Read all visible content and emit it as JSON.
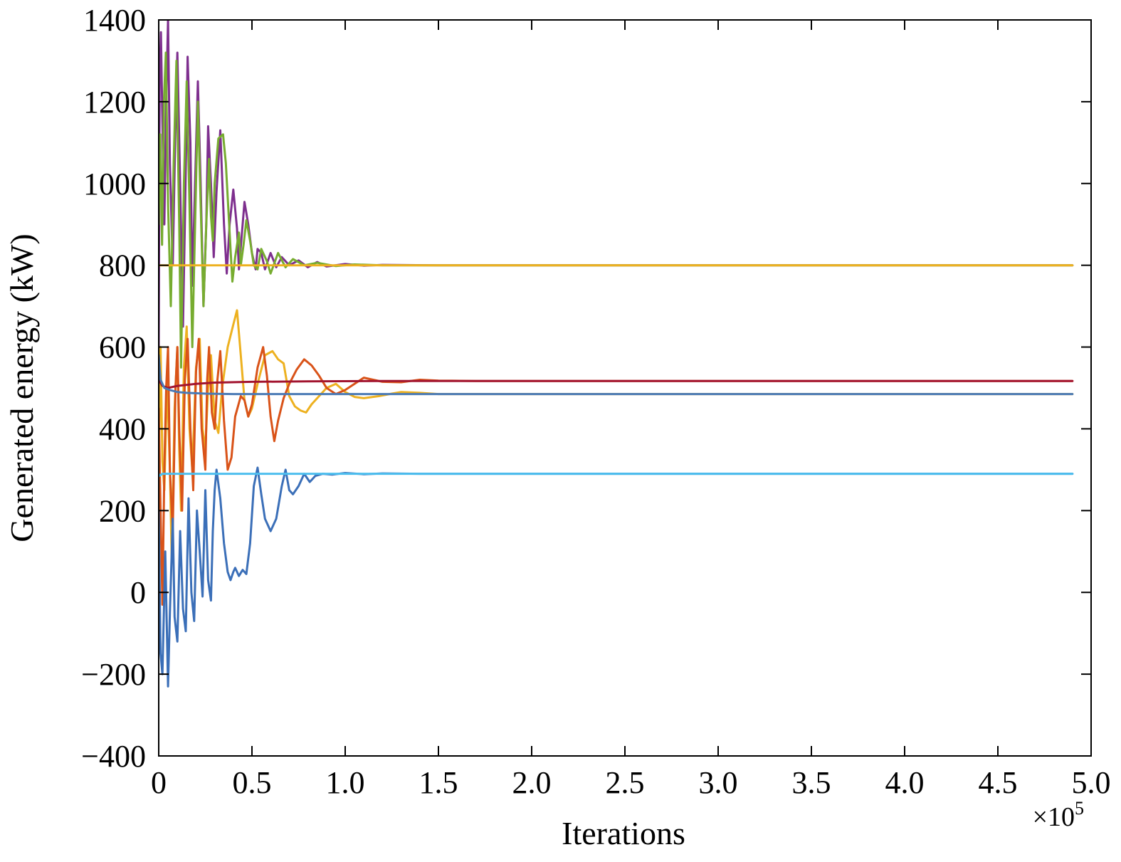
{
  "chart_data": {
    "type": "line",
    "title": "",
    "xlabel": "Iterations",
    "ylabel": "Generated energy (kW)",
    "x_multiplier_label": "×10",
    "x_multiplier_exponent": "5",
    "xlim": [
      0,
      5.0
    ],
    "ylim": [
      -400,
      1400
    ],
    "xticks": [
      0,
      0.5,
      1.0,
      1.5,
      2.0,
      2.5,
      3.0,
      3.5,
      4.0,
      4.5,
      5.0
    ],
    "xtick_labels": [
      "0",
      "0.5",
      "1.0",
      "1.5",
      "2.0",
      "2.5",
      "3.0",
      "3.5",
      "4.0",
      "4.5",
      "5.0"
    ],
    "yticks": [
      -400,
      -200,
      0,
      200,
      400,
      600,
      800,
      1000,
      1200,
      1400
    ],
    "ytick_labels": [
      "−400",
      "−200",
      "0",
      "200",
      "400",
      "600",
      "800",
      "1000",
      "1200",
      "1400"
    ],
    "grid": false,
    "legend": "none",
    "series": [
      {
        "color": "#7e2f8e",
        "points": [
          [
            0,
            600
          ],
          [
            0.005,
            1250
          ],
          [
            0.012,
            1370
          ],
          [
            0.02,
            1150
          ],
          [
            0.03,
            900
          ],
          [
            0.04,
            1200
          ],
          [
            0.05,
            1400
          ],
          [
            0.06,
            1050
          ],
          [
            0.075,
            800
          ],
          [
            0.09,
            1150
          ],
          [
            0.1,
            1320
          ],
          [
            0.115,
            1000
          ],
          [
            0.13,
            650
          ],
          [
            0.14,
            900
          ],
          [
            0.155,
            1310
          ],
          [
            0.17,
            1100
          ],
          [
            0.18,
            750
          ],
          [
            0.195,
            1000
          ],
          [
            0.21,
            1250
          ],
          [
            0.225,
            1000
          ],
          [
            0.24,
            700
          ],
          [
            0.255,
            900
          ],
          [
            0.265,
            1140
          ],
          [
            0.28,
            1000
          ],
          [
            0.295,
            820
          ],
          [
            0.31,
            980
          ],
          [
            0.33,
            1130
          ],
          [
            0.35,
            900
          ],
          [
            0.365,
            780
          ],
          [
            0.38,
            900
          ],
          [
            0.4,
            985
          ],
          [
            0.42,
            890
          ],
          [
            0.43,
            790
          ],
          [
            0.45,
            900
          ],
          [
            0.46,
            955
          ],
          [
            0.48,
            900
          ],
          [
            0.5,
            830
          ],
          [
            0.52,
            790
          ],
          [
            0.53,
            840
          ],
          [
            0.55,
            830
          ],
          [
            0.57,
            790
          ],
          [
            0.6,
            830
          ],
          [
            0.63,
            795
          ],
          [
            0.66,
            820
          ],
          [
            0.7,
            800
          ],
          [
            0.75,
            812
          ],
          [
            0.8,
            795
          ],
          [
            0.85,
            808
          ],
          [
            0.9,
            797
          ],
          [
            1.0,
            803
          ],
          [
            1.1,
            799
          ],
          [
            1.2,
            801
          ],
          [
            1.5,
            800
          ],
          [
            4.9,
            800
          ]
        ]
      },
      {
        "color": "#77ac30",
        "points": [
          [
            0,
            900
          ],
          [
            0.008,
            1120
          ],
          [
            0.018,
            850
          ],
          [
            0.028,
            1200
          ],
          [
            0.038,
            1320
          ],
          [
            0.05,
            950
          ],
          [
            0.065,
            700
          ],
          [
            0.08,
            1050
          ],
          [
            0.095,
            1300
          ],
          [
            0.11,
            900
          ],
          [
            0.12,
            550
          ],
          [
            0.135,
            1000
          ],
          [
            0.15,
            1250
          ],
          [
            0.165,
            950
          ],
          [
            0.18,
            600
          ],
          [
            0.195,
            900
          ],
          [
            0.21,
            1200
          ],
          [
            0.225,
            950
          ],
          [
            0.24,
            700
          ],
          [
            0.255,
            900
          ],
          [
            0.27,
            1060
          ],
          [
            0.28,
            920
          ],
          [
            0.29,
            860
          ],
          [
            0.3,
            1000
          ],
          [
            0.32,
            1110
          ],
          [
            0.345,
            1120
          ],
          [
            0.36,
            1050
          ],
          [
            0.38,
            880
          ],
          [
            0.395,
            760
          ],
          [
            0.41,
            820
          ],
          [
            0.43,
            880
          ],
          [
            0.44,
            800
          ],
          [
            0.455,
            850
          ],
          [
            0.47,
            910
          ],
          [
            0.49,
            860
          ],
          [
            0.51,
            800
          ],
          [
            0.53,
            790
          ],
          [
            0.55,
            840
          ],
          [
            0.58,
            810
          ],
          [
            0.6,
            780
          ],
          [
            0.64,
            830
          ],
          [
            0.68,
            795
          ],
          [
            0.72,
            815
          ],
          [
            0.78,
            800
          ],
          [
            0.85,
            806
          ],
          [
            0.95,
            798
          ],
          [
            1.05,
            802
          ],
          [
            1.2,
            800
          ],
          [
            4.9,
            800
          ]
        ]
      },
      {
        "color": "#edb120",
        "points": [
          [
            0,
            800
          ],
          [
            0.004,
            800
          ],
          [
            0.012,
            800
          ],
          [
            0.5,
            800
          ],
          [
            1.0,
            800
          ],
          [
            4.9,
            800
          ]
        ]
      },
      {
        "color": "#edb120",
        "points": [
          [
            0,
            300
          ],
          [
            0.01,
            600
          ],
          [
            0.02,
            320
          ],
          [
            0.03,
            250
          ],
          [
            0.045,
            520
          ],
          [
            0.06,
            300
          ],
          [
            0.07,
            80
          ],
          [
            0.085,
            450
          ],
          [
            0.1,
            600
          ],
          [
            0.11,
            350
          ],
          [
            0.12,
            200
          ],
          [
            0.135,
            550
          ],
          [
            0.15,
            650
          ],
          [
            0.165,
            400
          ],
          [
            0.18,
            300
          ],
          [
            0.2,
            550
          ],
          [
            0.22,
            620
          ],
          [
            0.235,
            400
          ],
          [
            0.25,
            350
          ],
          [
            0.265,
            500
          ],
          [
            0.28,
            580
          ],
          [
            0.3,
            420
          ],
          [
            0.32,
            390
          ],
          [
            0.34,
            500
          ],
          [
            0.37,
            600
          ],
          [
            0.4,
            655
          ],
          [
            0.42,
            690
          ],
          [
            0.44,
            580
          ],
          [
            0.46,
            470
          ],
          [
            0.48,
            430
          ],
          [
            0.5,
            450
          ],
          [
            0.53,
            510
          ],
          [
            0.57,
            580
          ],
          [
            0.61,
            590
          ],
          [
            0.64,
            570
          ],
          [
            0.67,
            560
          ],
          [
            0.7,
            480
          ],
          [
            0.73,
            455
          ],
          [
            0.76,
            445
          ],
          [
            0.79,
            440
          ],
          [
            0.82,
            460
          ],
          [
            0.86,
            480
          ],
          [
            0.9,
            500
          ],
          [
            0.95,
            510
          ],
          [
            1.0,
            490
          ],
          [
            1.05,
            478
          ],
          [
            1.1,
            475
          ],
          [
            1.18,
            480
          ],
          [
            1.25,
            486
          ],
          [
            1.3,
            490
          ],
          [
            1.4,
            488
          ],
          [
            1.5,
            485
          ],
          [
            1.8,
            485
          ],
          [
            4.9,
            485
          ]
        ]
      },
      {
        "color": "#d95319",
        "points": [
          [
            0,
            450
          ],
          [
            0.01,
            200
          ],
          [
            0.02,
            -30
          ],
          [
            0.03,
            300
          ],
          [
            0.04,
            500
          ],
          [
            0.05,
            600
          ],
          [
            0.06,
            300
          ],
          [
            0.075,
            150
          ],
          [
            0.09,
            500
          ],
          [
            0.1,
            600
          ],
          [
            0.11,
            400
          ],
          [
            0.125,
            200
          ],
          [
            0.14,
            520
          ],
          [
            0.155,
            620
          ],
          [
            0.17,
            400
          ],
          [
            0.185,
            250
          ],
          [
            0.2,
            540
          ],
          [
            0.215,
            620
          ],
          [
            0.23,
            400
          ],
          [
            0.25,
            300
          ],
          [
            0.26,
            520
          ],
          [
            0.27,
            600
          ],
          [
            0.285,
            440
          ],
          [
            0.3,
            400
          ],
          [
            0.315,
            520
          ],
          [
            0.33,
            590
          ],
          [
            0.35,
            420
          ],
          [
            0.37,
            300
          ],
          [
            0.39,
            330
          ],
          [
            0.41,
            430
          ],
          [
            0.44,
            480
          ],
          [
            0.46,
            470
          ],
          [
            0.48,
            430
          ],
          [
            0.5,
            460
          ],
          [
            0.53,
            550
          ],
          [
            0.56,
            600
          ],
          [
            0.58,
            530
          ],
          [
            0.6,
            430
          ],
          [
            0.62,
            370
          ],
          [
            0.64,
            420
          ],
          [
            0.67,
            475
          ],
          [
            0.7,
            510
          ],
          [
            0.74,
            545
          ],
          [
            0.78,
            570
          ],
          [
            0.82,
            555
          ],
          [
            0.86,
            530
          ],
          [
            0.9,
            500
          ],
          [
            0.95,
            485
          ],
          [
            1.0,
            495
          ],
          [
            1.05,
            510
          ],
          [
            1.1,
            525
          ],
          [
            1.15,
            520
          ],
          [
            1.2,
            515
          ],
          [
            1.3,
            514
          ],
          [
            1.4,
            520
          ],
          [
            1.5,
            518
          ],
          [
            1.7,
            517
          ],
          [
            4.9,
            517
          ]
        ]
      },
      {
        "color": "#a2142f",
        "points": [
          [
            0,
            520
          ],
          [
            0.02,
            505
          ],
          [
            0.05,
            500
          ],
          [
            0.1,
            505
          ],
          [
            0.2,
            510
          ],
          [
            0.3,
            513
          ],
          [
            0.5,
            515
          ],
          [
            0.8,
            516
          ],
          [
            1.2,
            517
          ],
          [
            2.0,
            517
          ],
          [
            4.9,
            517
          ]
        ]
      },
      {
        "color": "#4a7ab5",
        "points": [
          [
            0,
            580
          ],
          [
            0.01,
            520
          ],
          [
            0.03,
            500
          ],
          [
            0.06,
            495
          ],
          [
            0.1,
            490
          ],
          [
            0.15,
            488
          ],
          [
            0.25,
            486
          ],
          [
            0.4,
            485
          ],
          [
            0.7,
            485
          ],
          [
            1.0,
            485
          ],
          [
            2.0,
            485
          ],
          [
            4.9,
            485
          ]
        ]
      },
      {
        "color": "#3b6fb8",
        "points": [
          [
            0,
            200
          ],
          [
            0.01,
            -150
          ],
          [
            0.02,
            -200
          ],
          [
            0.035,
            100
          ],
          [
            0.05,
            -230
          ],
          [
            0.06,
            -50
          ],
          [
            0.075,
            180
          ],
          [
            0.085,
            -60
          ],
          [
            0.1,
            -120
          ],
          [
            0.115,
            150
          ],
          [
            0.13,
            -40
          ],
          [
            0.145,
            -95
          ],
          [
            0.16,
            230
          ],
          [
            0.175,
            0
          ],
          [
            0.19,
            -70
          ],
          [
            0.205,
            200
          ],
          [
            0.22,
            100
          ],
          [
            0.235,
            -10
          ],
          [
            0.25,
            250
          ],
          [
            0.265,
            30
          ],
          [
            0.28,
            -20
          ],
          [
            0.29,
            150
          ],
          [
            0.3,
            250
          ],
          [
            0.31,
            300
          ],
          [
            0.33,
            230
          ],
          [
            0.35,
            120
          ],
          [
            0.37,
            50
          ],
          [
            0.385,
            30
          ],
          [
            0.4,
            50
          ],
          [
            0.41,
            60
          ],
          [
            0.43,
            40
          ],
          [
            0.45,
            55
          ],
          [
            0.47,
            45
          ],
          [
            0.49,
            120
          ],
          [
            0.51,
            260
          ],
          [
            0.53,
            305
          ],
          [
            0.55,
            240
          ],
          [
            0.57,
            180
          ],
          [
            0.6,
            150
          ],
          [
            0.63,
            180
          ],
          [
            0.66,
            260
          ],
          [
            0.68,
            300
          ],
          [
            0.7,
            250
          ],
          [
            0.72,
            240
          ],
          [
            0.75,
            260
          ],
          [
            0.78,
            290
          ],
          [
            0.81,
            270
          ],
          [
            0.84,
            285
          ],
          [
            0.88,
            290
          ],
          [
            0.93,
            288
          ],
          [
            1.0,
            292
          ],
          [
            1.1,
            289
          ],
          [
            1.2,
            291
          ],
          [
            1.4,
            290
          ],
          [
            4.9,
            290
          ]
        ]
      },
      {
        "color": "#4dbeee",
        "points": [
          [
            0,
            290
          ],
          [
            0.004,
            285
          ],
          [
            0.02,
            290
          ],
          [
            0.5,
            290
          ],
          [
            1.0,
            290
          ],
          [
            4.9,
            290
          ]
        ]
      }
    ]
  }
}
